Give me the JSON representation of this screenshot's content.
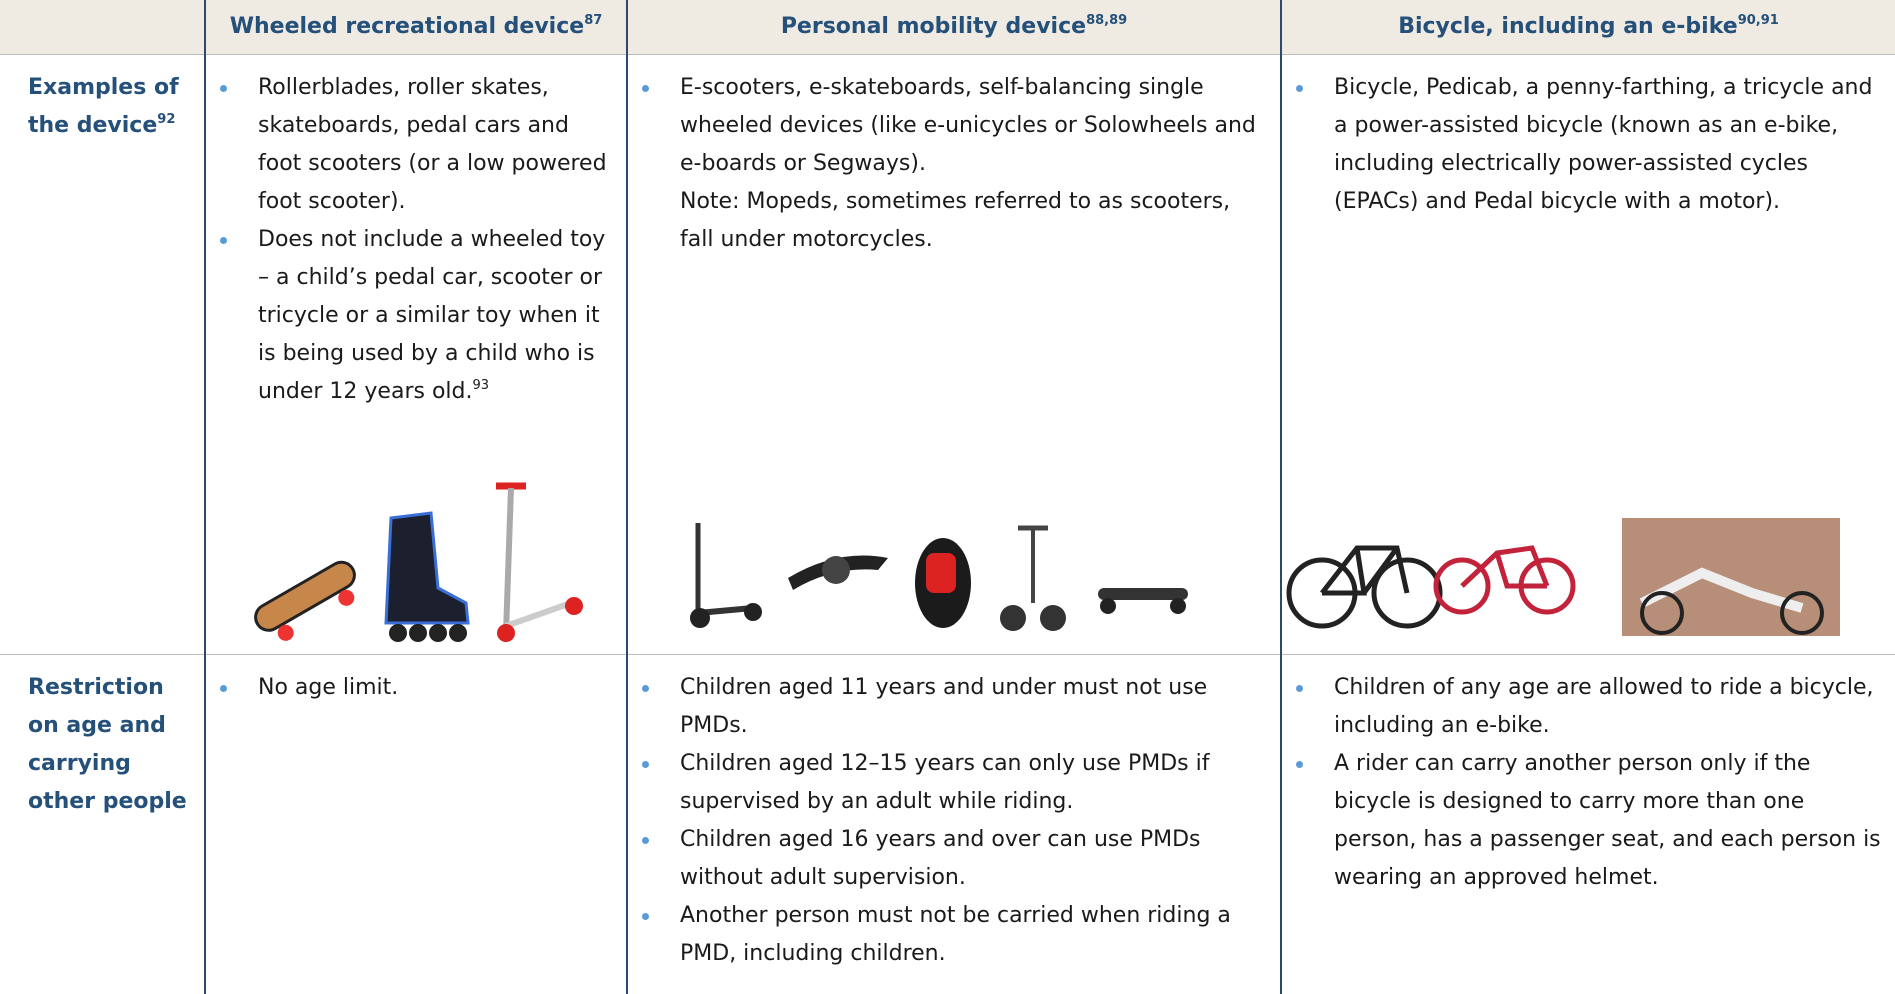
{
  "table": {
    "header": [
      {
        "text": "Wheeled recreational device",
        "sup": "87"
      },
      {
        "text": "Personal mobility device",
        "sup": "88,89"
      },
      {
        "text": "Bicycle, including an e-bike",
        "sup": "90,91"
      }
    ],
    "rows": [
      {
        "label": "Examples of the device",
        "label_sup": "92",
        "cells": [
          {
            "bullets": [
              {
                "text": "Rollerblades, roller skates, skateboards, pedal cars and foot scooters (or a low powered foot scooter)."
              },
              {
                "text": "Does not include a wheeled toy – a child’s pedal car, scooter or tricycle or a similar toy when it is being used by a child who is under 12 years old.",
                "sup": "93"
              }
            ]
          },
          {
            "bullets": [
              {
                "text": "E-scooters, e-skateboards, self-balancing single wheeled devices (like e-unicycles or Solowheels and e-boards or Segways)."
              }
            ],
            "note": "Note: Mopeds, sometimes referred to as scooters, fall under motorcycles."
          },
          {
            "bullets": [
              {
                "text": "Bicycle, Pedicab, a penny-farthing, a tricycle and a power-assisted bicycle (known as an e-bike, including electrically power-assisted cycles (EPACs) and Pedal bicycle with a motor)."
              }
            ]
          }
        ]
      },
      {
        "label": "Restriction on age and carrying other people",
        "cells": [
          {
            "bullets": [
              {
                "text": "No age limit."
              }
            ]
          },
          {
            "bullets": [
              {
                "text": "Children aged 11 years and under must not use PMDs."
              },
              {
                "text": "Children aged 12–15 years can only use PMDs if supervised by an adult while riding."
              },
              {
                "text": "Children aged 16 years and over can use PMDs without adult supervision."
              },
              {
                "text": "Another person must not be carried when riding a PMD, including children."
              }
            ]
          },
          {
            "bullets": [
              {
                "text": "Children of any age are allowed to ride a bicycle, including an e-bike."
              },
              {
                "text": "A rider can carry another person only if the bicycle is designed to carry more than one person, has a passenger seat, and each person is wearing an approved helmet."
              }
            ]
          }
        ]
      }
    ]
  }
}
